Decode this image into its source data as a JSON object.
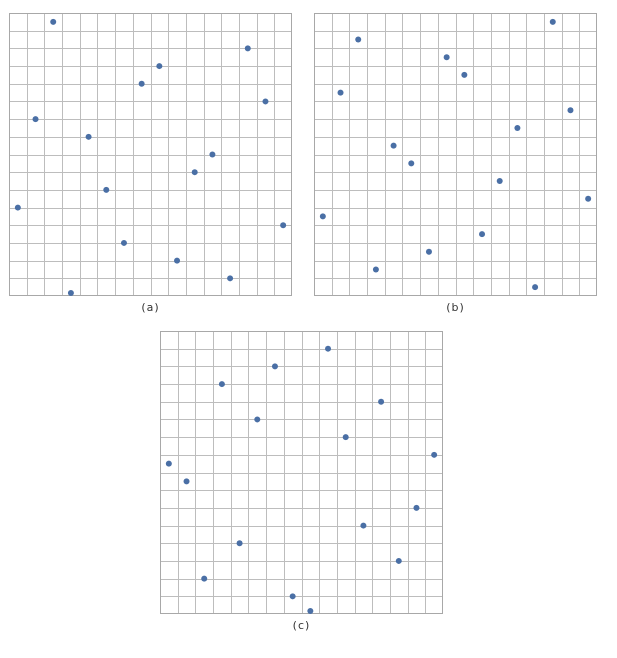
{
  "grid": {
    "cols": 16,
    "rows": 16
  },
  "colors": {
    "grid": "#bdbdbd",
    "border": "#a8a8a8",
    "dot": "#4a6fa5"
  },
  "panels": [
    {
      "label": "(a)",
      "points": [
        [
          0.5,
          5.0
        ],
        [
          1.5,
          10.0
        ],
        [
          2.5,
          15.5
        ],
        [
          3.5,
          0.0
        ],
        [
          4.5,
          9.0
        ],
        [
          5.5,
          6.0
        ],
        [
          6.5,
          3.0
        ],
        [
          7.5,
          12.0
        ],
        [
          8.5,
          13.0
        ],
        [
          9.5,
          2.0
        ],
        [
          10.5,
          7.0
        ],
        [
          11.5,
          8.0
        ],
        [
          12.5,
          1.0
        ],
        [
          13.5,
          14.0
        ],
        [
          14.5,
          11.0
        ],
        [
          15.5,
          4.0
        ]
      ]
    },
    {
      "label": "(b)",
      "points": [
        [
          0.5,
          4.5
        ],
        [
          1.5,
          11.5
        ],
        [
          2.5,
          14.5
        ],
        [
          3.5,
          1.5
        ],
        [
          4.5,
          8.5
        ],
        [
          5.5,
          7.5
        ],
        [
          6.5,
          2.5
        ],
        [
          7.5,
          13.5
        ],
        [
          8.5,
          12.5
        ],
        [
          9.5,
          3.5
        ],
        [
          10.5,
          6.5
        ],
        [
          11.5,
          9.5
        ],
        [
          12.5,
          0.5
        ],
        [
          13.5,
          15.5
        ],
        [
          14.5,
          10.5
        ],
        [
          15.5,
          5.5
        ]
      ]
    },
    {
      "label": "(c)",
      "points": [
        [
          0.5,
          8.5
        ],
        [
          1.5,
          7.5
        ],
        [
          2.5,
          2.0
        ],
        [
          3.5,
          13.0
        ],
        [
          4.5,
          4.0
        ],
        [
          5.5,
          11.0
        ],
        [
          6.5,
          14.0
        ],
        [
          7.5,
          1.0
        ],
        [
          8.5,
          0.0
        ],
        [
          9.5,
          15.0
        ],
        [
          10.5,
          10.0
        ],
        [
          11.5,
          5.0
        ],
        [
          12.5,
          12.0
        ],
        [
          13.5,
          3.0
        ],
        [
          14.5,
          6.0
        ],
        [
          15.5,
          9.0
        ]
      ]
    }
  ]
}
